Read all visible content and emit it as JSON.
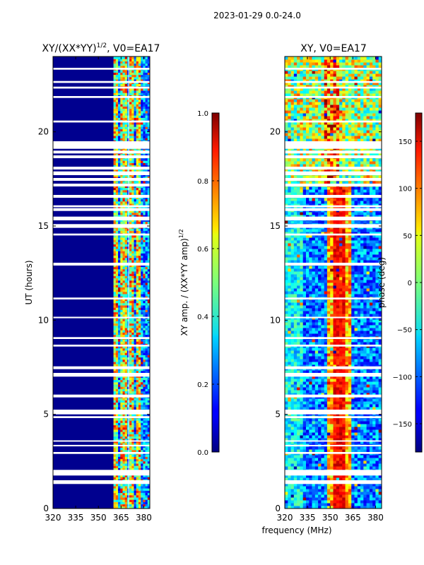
{
  "figure": {
    "suptitle": "2023-01-29 0.0-24.0",
    "xlabel_shared": "frequency (MHz)"
  },
  "chart_data": [
    {
      "type": "heatmap",
      "title": "XY/(XX*YY)^1/2, V0=EA17",
      "title_main": "XY/(XX*YY)",
      "title_sup": "1/2",
      "title_tail": ", V0=EA17",
      "xlabel": "",
      "ylabel": "UT (hours)",
      "xlim": [
        320,
        384
      ],
      "ylim": [
        0,
        24
      ],
      "xticks": [
        320,
        335,
        350,
        365,
        380
      ],
      "yticks": [
        0,
        5,
        10,
        15,
        20
      ],
      "data_start_freq": 360,
      "bright_channels": [
        361,
        366,
        371,
        376
      ],
      "white_line_x": 370,
      "colorbar": {
        "label": "XY amp. / (XX*YY amp)^1/2",
        "label_main": "XY amp. / (XX*YY amp)",
        "label_sup": "1/2",
        "range": [
          0.0,
          1.0
        ],
        "ticks": [
          "0.0",
          "0.2",
          "0.4",
          "0.6",
          "0.8",
          "1.0"
        ],
        "tick_values": [
          0.0,
          0.2,
          0.4,
          0.6,
          0.8,
          1.0
        ],
        "colormap": "jet"
      }
    },
    {
      "type": "heatmap",
      "title": "XY, V0=EA17",
      "xlabel": "frequency (MHz)",
      "ylabel": "",
      "xlim": [
        320,
        384
      ],
      "ylim": [
        0,
        24
      ],
      "xticks": [
        320,
        335,
        350,
        365,
        380
      ],
      "yticks": [
        0,
        5,
        10,
        15,
        20
      ],
      "phase_center_freq": 355,
      "colorbar": {
        "label": "phase (deg)",
        "range": [
          -180,
          180
        ],
        "ticks": [
          "150",
          "100",
          "50",
          "0",
          "−50",
          "−100",
          "−150"
        ],
        "tick_values": [
          150,
          100,
          50,
          0,
          -50,
          -100,
          -150
        ],
        "colormap": "jet"
      }
    }
  ],
  "flagged_rows_hours": [
    [
      1.3,
      1.5
    ],
    [
      1.75,
      2.05
    ],
    [
      2.9,
      3.0
    ],
    [
      3.3,
      3.38
    ],
    [
      3.55,
      3.62
    ],
    [
      4.8,
      4.9
    ],
    [
      5.0,
      5.25
    ],
    [
      5.9,
      6.05
    ],
    [
      7.0,
      7.2
    ],
    [
      7.4,
      7.55
    ],
    [
      8.6,
      8.7
    ],
    [
      9.0,
      9.1
    ],
    [
      10.1,
      10.18
    ],
    [
      11.1,
      11.2
    ],
    [
      12.9,
      13.05
    ],
    [
      14.5,
      14.6
    ],
    [
      14.9,
      15.1
    ],
    [
      15.3,
      15.5
    ],
    [
      15.8,
      15.95
    ],
    [
      16.0,
      16.1
    ],
    [
      16.5,
      16.65
    ],
    [
      17.1,
      17.25
    ],
    [
      17.4,
      17.55
    ],
    [
      17.7,
      17.9
    ],
    [
      18.0,
      18.15
    ],
    [
      18.6,
      18.75
    ],
    [
      18.85,
      19.0
    ],
    [
      19.1,
      19.5
    ],
    [
      20.5,
      20.6
    ],
    [
      21.8,
      21.9
    ],
    [
      22.3,
      22.4
    ],
    [
      22.6,
      22.7
    ],
    [
      23.3,
      23.4
    ]
  ]
}
